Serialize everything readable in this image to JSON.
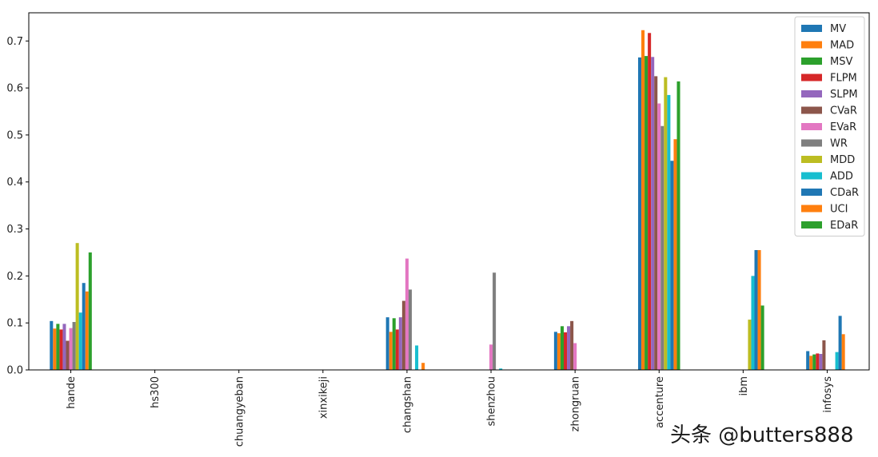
{
  "chart_data": {
    "type": "bar",
    "title": "",
    "xlabel": "",
    "ylabel": "",
    "ylim": [
      0,
      0.76
    ],
    "yticks": [
      "0.0",
      "0.1",
      "0.2",
      "0.3",
      "0.4",
      "0.5",
      "0.6",
      "0.7"
    ],
    "grid": false,
    "legend_position": "top-right",
    "categories": [
      "hande",
      "hs300",
      "chuangyeban",
      "xinxikeji",
      "changshan",
      "shenzhou",
      "zhongruan",
      "accenture",
      "ibm",
      "infosys"
    ],
    "series": [
      {
        "name": "MV",
        "color": "#1f77b4",
        "values": [
          0.104,
          0,
          0,
          0,
          0.112,
          0,
          0.081,
          0.665,
          0,
          0.04
        ]
      },
      {
        "name": "MAD",
        "color": "#ff7f0e",
        "values": [
          0.088,
          0,
          0,
          0,
          0.081,
          0,
          0.078,
          0.723,
          0,
          0.03
        ]
      },
      {
        "name": "MSV",
        "color": "#2ca02c",
        "values": [
          0.098,
          0,
          0,
          0,
          0.11,
          0,
          0.093,
          0.668,
          0,
          0.033
        ]
      },
      {
        "name": "FLPM",
        "color": "#d62728",
        "values": [
          0.086,
          0,
          0,
          0,
          0.086,
          0,
          0.08,
          0.717,
          0,
          0.035
        ]
      },
      {
        "name": "SLPM",
        "color": "#9467bd",
        "values": [
          0.098,
          0,
          0,
          0,
          0.112,
          0,
          0.093,
          0.666,
          0,
          0.034
        ]
      },
      {
        "name": "CVaR",
        "color": "#8c564b",
        "values": [
          0.062,
          0,
          0,
          0,
          0.147,
          0,
          0.104,
          0.625,
          0,
          0.063
        ]
      },
      {
        "name": "EVaR",
        "color": "#e377c2",
        "values": [
          0.089,
          0,
          0,
          0,
          0.237,
          0.054,
          0.057,
          0.567,
          0,
          0
        ]
      },
      {
        "name": "WR",
        "color": "#7f7f7f",
        "values": [
          0.102,
          0,
          0,
          0,
          0.171,
          0.207,
          0,
          0.519,
          0,
          0
        ]
      },
      {
        "name": "MDD",
        "color": "#bcbd22",
        "values": [
          0.27,
          0,
          0,
          0,
          0,
          0,
          0,
          0.623,
          0.107,
          0
        ]
      },
      {
        "name": "ADD",
        "color": "#17becf",
        "values": [
          0.122,
          0,
          0,
          0,
          0.052,
          0.003,
          0,
          0.585,
          0.2,
          0.038
        ]
      },
      {
        "name": "CDaR",
        "color": "#1f77b4",
        "values": [
          0.185,
          0,
          0,
          0,
          0,
          0,
          0,
          0.445,
          0.255,
          0.115
        ]
      },
      {
        "name": "UCI",
        "color": "#ff7f0e",
        "values": [
          0.167,
          0,
          0,
          0,
          0.015,
          0,
          0,
          0.491,
          0.255,
          0.076
        ]
      },
      {
        "name": "EDaR",
        "color": "#2ca02c",
        "values": [
          0.25,
          0,
          0,
          0,
          0,
          0,
          0,
          0.614,
          0.137,
          0
        ]
      }
    ]
  },
  "watermark": "头条 @butters888"
}
